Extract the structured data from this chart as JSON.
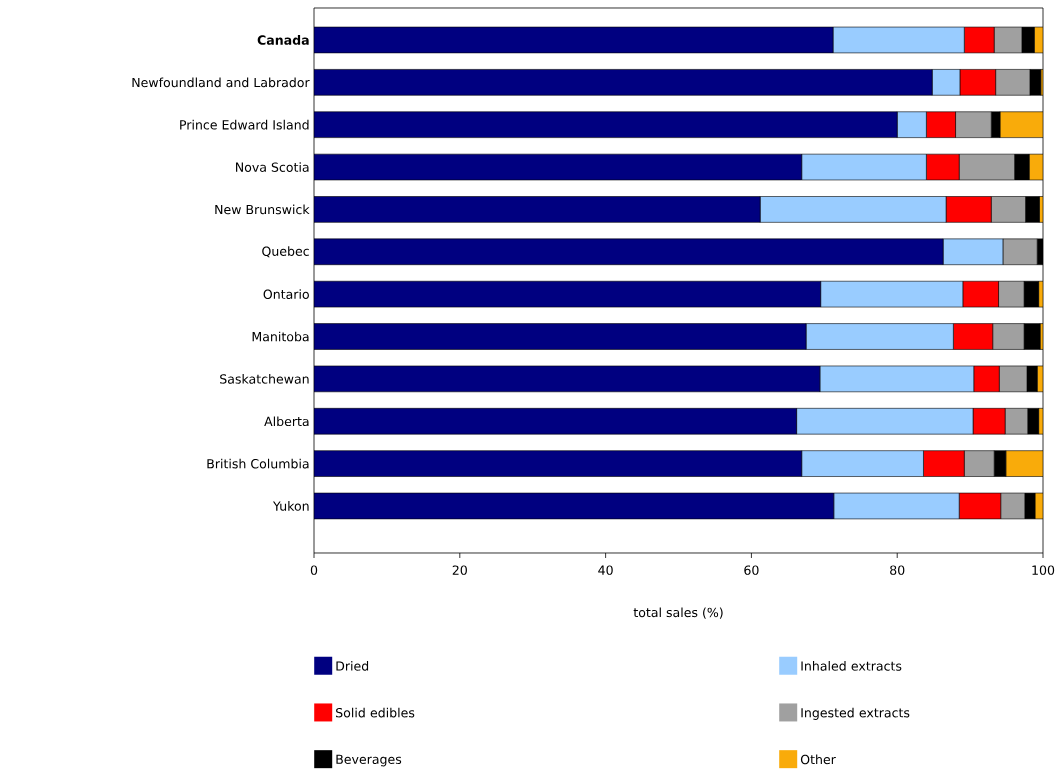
{
  "chart_data": {
    "type": "bar",
    "orientation": "horizontal",
    "stacked": true,
    "categories": [
      "**Canada**",
      "Newfoundland and Labrador",
      "Prince Edward Island",
      "Nova Scotia",
      "New Brunswick",
      "Quebec",
      "Ontario",
      "Manitoba",
      "Saskatchewan",
      "Alberta",
      "British Columbia",
      "Yukon"
    ],
    "series": [
      {
        "name": "Dried",
        "color": "#000080",
        "values": [
          71.2,
          84.8,
          80.0,
          66.9,
          61.2,
          86.3,
          69.5,
          67.5,
          69.4,
          66.2,
          66.9,
          71.3
        ]
      },
      {
        "name": "Inhaled extracts",
        "color": "#99ccff",
        "values": [
          18.0,
          3.8,
          4.0,
          17.1,
          25.5,
          8.2,
          19.5,
          20.2,
          21.1,
          24.2,
          16.7,
          17.2
        ]
      },
      {
        "name": "Solid edibles",
        "color": "#ff0000",
        "values": [
          4.1,
          4.9,
          4.0,
          4.5,
          6.2,
          0,
          4.9,
          5.4,
          3.5,
          4.4,
          5.6,
          5.7
        ]
      },
      {
        "name": "Ingested extracts",
        "color": "#a0a0a0",
        "values": [
          3.8,
          4.7,
          4.9,
          7.6,
          4.7,
          4.7,
          3.5,
          4.3,
          3.8,
          3.1,
          4.1,
          3.3
        ]
      },
      {
        "name": "Beverages",
        "color": "#000000",
        "values": [
          1.7,
          1.5,
          1.2,
          2.0,
          1.9,
          0.8,
          2.0,
          2.2,
          1.4,
          1.5,
          1.6,
          1.4
        ]
      },
      {
        "name": "Other",
        "color": "#f9ab0a",
        "values": [
          1.2,
          0.3,
          5.9,
          1.9,
          0.5,
          0,
          0.6,
          0.4,
          0.8,
          0.6,
          5.1,
          1.1
        ]
      }
    ],
    "xlim": [
      0,
      100
    ],
    "xticks": [
      0,
      20,
      40,
      60,
      80,
      100
    ],
    "xlabel": "total sales (%)",
    "legend": "bottom",
    "grid": false
  }
}
